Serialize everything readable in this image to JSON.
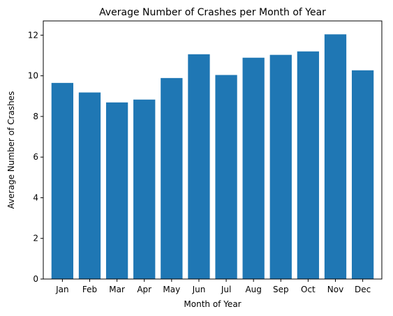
{
  "chart_data": {
    "type": "bar",
    "title": "Average Number of Crashes per Month of Year",
    "xlabel": "Month of Year",
    "ylabel": "Average Number of Crashes",
    "categories": [
      "Jan",
      "Feb",
      "Mar",
      "Apr",
      "May",
      "Jun",
      "Jul",
      "Aug",
      "Sep",
      "Oct",
      "Nov",
      "Dec"
    ],
    "values": [
      9.65,
      9.18,
      8.69,
      8.83,
      9.89,
      11.06,
      10.04,
      10.89,
      11.03,
      11.2,
      12.04,
      10.27
    ],
    "ylim": [
      0,
      12.7
    ],
    "yticks": [
      0,
      2,
      4,
      6,
      8,
      10,
      12
    ],
    "grid": false,
    "legend": "none",
    "bar_color": "#1f77b4"
  }
}
